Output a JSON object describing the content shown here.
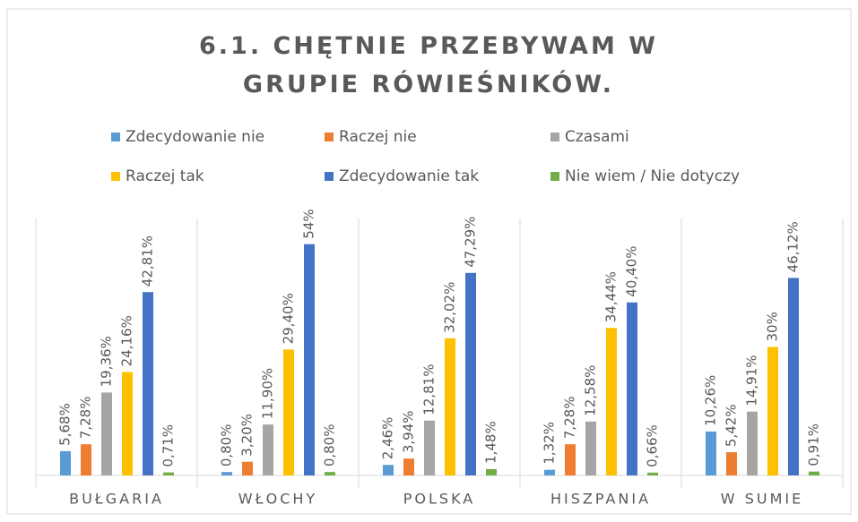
{
  "chart_data": {
    "type": "bar",
    "title": "6.1. CHĘTNIE PRZEBYWAM W GRUPIE RÓWIEŚNIKÓW.",
    "categories": [
      "BUŁGARIA",
      "WŁOCHY",
      "POLSKA",
      "HISZPANIA",
      "W SUMIE"
    ],
    "ylim": [
      0,
      60
    ],
    "series": [
      {
        "name": "Zdecydowanie nie",
        "color": "#5b9bd5",
        "values": [
          5.68,
          0.8,
          2.46,
          1.32,
          10.26
        ],
        "value_labels": [
          "5,68%",
          "0,80%",
          "2,46%",
          "1,32%",
          "10,26%"
        ]
      },
      {
        "name": "Raczej nie",
        "color": "#ed7d31",
        "values": [
          7.28,
          3.2,
          3.94,
          7.28,
          5.42
        ],
        "value_labels": [
          "7,28%",
          "3,20%",
          "3,94%",
          "7,28%",
          "5,42%"
        ]
      },
      {
        "name": "Czasami",
        "color": "#a5a5a5",
        "values": [
          19.36,
          11.9,
          12.81,
          12.58,
          14.91
        ],
        "value_labels": [
          "19,36%",
          "11,90%",
          "12,81%",
          "12,58%",
          "14,91%"
        ]
      },
      {
        "name": "Raczej tak",
        "color": "#ffc000",
        "values": [
          24.16,
          29.4,
          32.02,
          34.44,
          30
        ],
        "value_labels": [
          "24,16%",
          "29,40%",
          "32,02%",
          "34,44%",
          "30%"
        ]
      },
      {
        "name": "Zdecydowanie tak",
        "color": "#4472c4",
        "values": [
          42.81,
          54,
          47.29,
          40.4,
          46.12
        ],
        "value_labels": [
          "42,81%",
          "54%",
          "47,29%",
          "40,40%",
          "46,12%"
        ]
      },
      {
        "name": "Nie wiem / Nie dotyczy",
        "color": "#70ad47",
        "values": [
          0.71,
          0.8,
          1.48,
          0.66,
          0.91
        ],
        "value_labels": [
          "0,71%",
          "0,80%",
          "1,48%",
          "0,66%",
          "0,91%"
        ]
      }
    ]
  }
}
